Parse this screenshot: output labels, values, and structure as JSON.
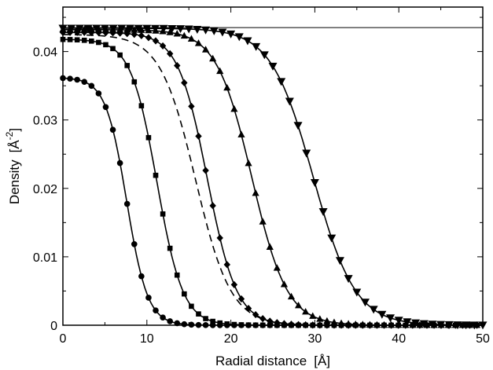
{
  "chart_data": {
    "type": "line",
    "title": "",
    "xlabel": "Radial distance",
    "xlabel_unit": "Å",
    "ylabel": "Density",
    "ylabel_unit": "Å",
    "ylabel_unit_exp": "-2",
    "xlim": [
      0,
      50
    ],
    "ylim": [
      0,
      0.0465
    ],
    "x_ticks": [
      0,
      10,
      20,
      30,
      40,
      50
    ],
    "x_tick_labels": [
      "0",
      "10",
      "20",
      "30",
      "40",
      "50"
    ],
    "y_ticks": [
      0,
      0.01,
      0.02,
      0.03,
      0.04
    ],
    "y_tick_labels": [
      "0",
      "0.01",
      "0.02",
      "0.03",
      "0.04"
    ],
    "grid": false,
    "legend": "none",
    "reference_line": {
      "y": 0.0435,
      "style": "thin-solid"
    },
    "series": [
      {
        "marker": "circle",
        "rho0": 0.0362,
        "R": 7.6,
        "w": 1.25,
        "marker_step": 0.85
      },
      {
        "marker": "square",
        "rho0": 0.0418,
        "R": 11.2,
        "w": 1.55,
        "marker_step": 0.85
      },
      {
        "marker": "none",
        "rho0": 0.0425,
        "R": 15.8,
        "w": 2.1,
        "style": "dashed"
      },
      {
        "marker": "diamond",
        "rho0": 0.0428,
        "R": 17.2,
        "w": 1.75,
        "marker_step": 0.85
      },
      {
        "marker": "triangle-up",
        "rho0": 0.0432,
        "R": 22.5,
        "w": 2.1,
        "marker_step": 0.85
      },
      {
        "marker": "triangle-down",
        "rho0": 0.0434,
        "R": 29.8,
        "w": 2.5,
        "marker_step": 1.0
      }
    ]
  }
}
